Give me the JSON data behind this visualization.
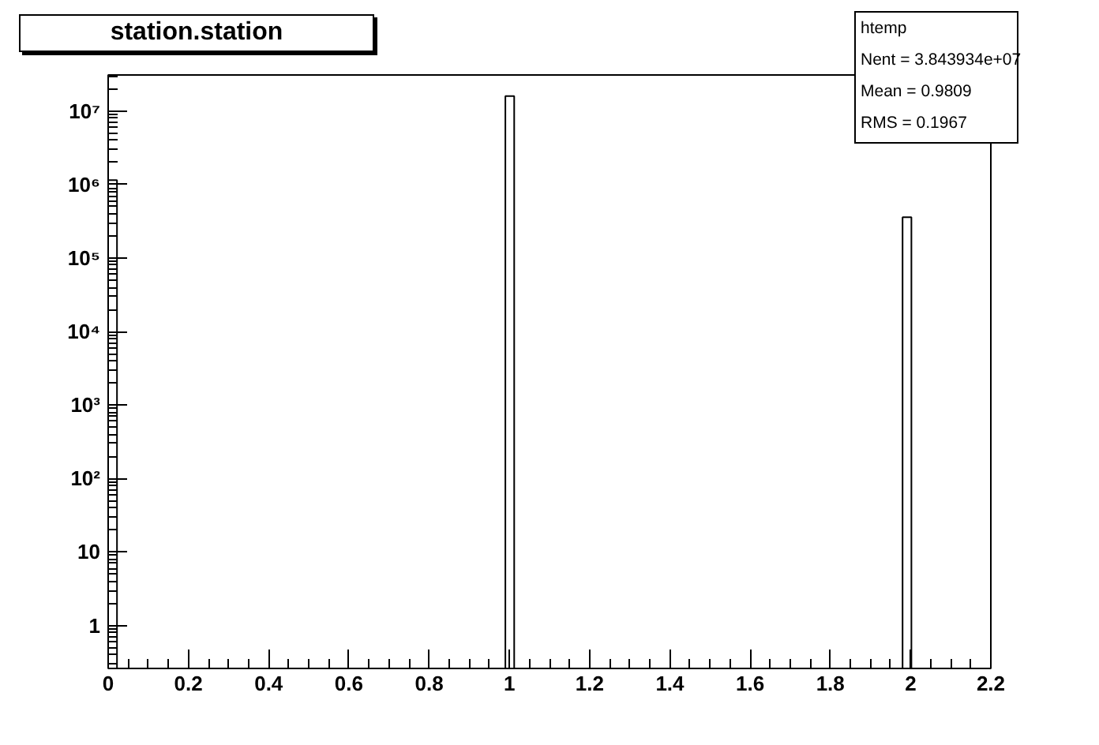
{
  "chart_data": {
    "type": "histogram",
    "title": "station.station",
    "bins": [
      0,
      0.022,
      0.99,
      1.012,
      1.98,
      2.002
    ],
    "values": [
      1150000,
      null,
      16000000,
      null,
      360000
    ],
    "color": "#ffffff",
    "log": true,
    "xlim": [
      0,
      2.2
    ],
    "ylim": [
      0.26,
      31000000
    ],
    "xticks": [
      0,
      0.2,
      0.4,
      0.6,
      0.8,
      1,
      1.2,
      1.4,
      1.6,
      1.8,
      2,
      2.2
    ],
    "yticks": [
      1,
      10,
      {
        "value": 100,
        "label": "10²"
      },
      {
        "value": 1000,
        "label": "10³"
      },
      {
        "value": 10000,
        "label": "10⁴"
      },
      {
        "value": 100000,
        "label": "10⁵"
      },
      {
        "value": 1000000,
        "label": "10⁶"
      },
      {
        "value": 10000000,
        "label": "10⁷"
      }
    ],
    "grid": false,
    "annotations": [
      "htemp",
      "Nent =   3.843934e+07",
      "Mean  = 0.9809",
      "RMS   = 0.1967"
    ]
  }
}
